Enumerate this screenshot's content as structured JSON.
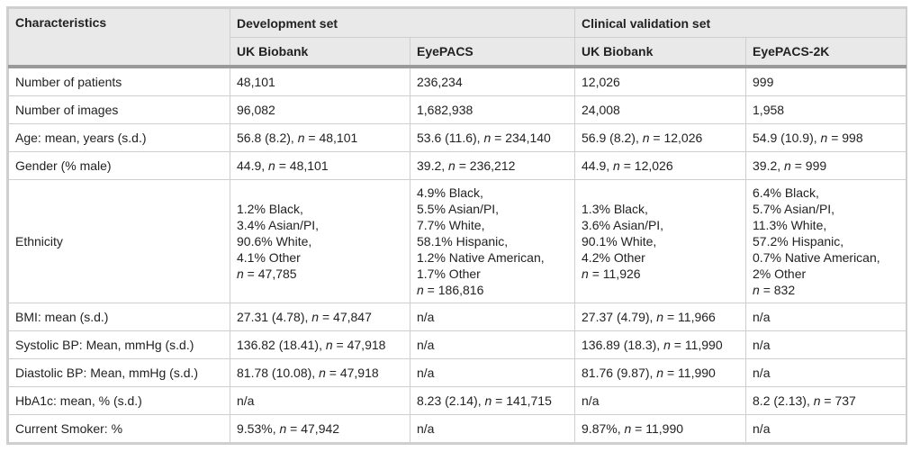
{
  "header": {
    "characteristics": "Characteristics",
    "development_set": "Development set",
    "clinical_validation_set": "Clinical validation set",
    "columns": [
      "UK Biobank",
      "EyePACS",
      "UK Biobank",
      "EyePACS-2K"
    ]
  },
  "rows": [
    {
      "label": "Number of patients",
      "cells": [
        "48,101",
        "236,234",
        "12,026",
        "999"
      ]
    },
    {
      "label": "Number of images",
      "cells": [
        "96,082",
        "1,682,938",
        "24,008",
        "1,958"
      ]
    },
    {
      "label": "Age: mean, years (s.d.)",
      "cells": [
        {
          "pre": "56.8 (8.2), ",
          "n": "n",
          "post": " = 48,101"
        },
        {
          "pre": "53.6 (11.6), ",
          "n": "n",
          "post": " = 234,140"
        },
        {
          "pre": "56.9 (8.2), ",
          "n": "n",
          "post": " = 12,026"
        },
        {
          "pre": "54.9 (10.9), ",
          "n": "n",
          "post": " = 998"
        }
      ]
    },
    {
      "label": "Gender (% male)",
      "cells": [
        {
          "pre": "44.9, ",
          "n": "n",
          "post": " = 48,101"
        },
        {
          "pre": "39.2, ",
          "n": "n",
          "post": " = 236,212"
        },
        {
          "pre": "44.9, ",
          "n": "n",
          "post": " = 12,026"
        },
        {
          "pre": "39.2, ",
          "n": "n",
          "post": " = 999"
        }
      ]
    },
    {
      "label": "Ethnicity",
      "ethnicity": [
        {
          "lines": "1.2% Black,\n3.4% Asian/PI,\n90.6% White,\n4.1% Other",
          "n": "n",
          "post": " = 47,785"
        },
        {
          "lines": "4.9% Black,\n5.5% Asian/PI,\n7.7% White,\n58.1% Hispanic,\n1.2% Native American,\n1.7% Other",
          "n": "n",
          "post": " = 186,816"
        },
        {
          "lines": "1.3% Black,\n3.6% Asian/PI,\n90.1% White,\n4.2% Other",
          "n": "n",
          "post": " = 11,926"
        },
        {
          "lines": "6.4% Black,\n5.7% Asian/PI,\n11.3% White,\n57.2% Hispanic,\n0.7% Native American,\n2% Other",
          "n": "n",
          "post": " = 832"
        }
      ]
    },
    {
      "label": "BMI: mean (s.d.)",
      "cells": [
        {
          "pre": "27.31 (4.78), ",
          "n": "n",
          "post": " = 47,847"
        },
        "n/a",
        {
          "pre": "27.37 (4.79), ",
          "n": "n",
          "post": " = 11,966"
        },
        "n/a"
      ]
    },
    {
      "label": "Systolic BP: Mean, mmHg (s.d.)",
      "cells": [
        {
          "pre": "136.82 (18.41), ",
          "n": "n",
          "post": " = 47,918"
        },
        "n/a",
        {
          "pre": "136.89 (18.3), ",
          "n": "n",
          "post": " = 11,990"
        },
        "n/a"
      ]
    },
    {
      "label": "Diastolic BP: Mean, mmHg (s.d.)",
      "cells": [
        {
          "pre": "81.78 (10.08), ",
          "n": "n",
          "post": " = 47,918"
        },
        "n/a",
        {
          "pre": "81.76 (9.87), ",
          "n": "n",
          "post": " = 11,990"
        },
        "n/a"
      ]
    },
    {
      "label": "HbA1c: mean, % (s.d.)",
      "cells": [
        "n/a",
        {
          "pre": "8.23 (2.14), ",
          "n": "n",
          "post": " = 141,715"
        },
        "n/a",
        {
          "pre": "8.2 (2.13), ",
          "n": "n",
          "post": " = 737"
        }
      ]
    },
    {
      "label": "Current Smoker: %",
      "cells": [
        {
          "pre": "9.53%, ",
          "n": "n",
          "post": " = 47,942"
        },
        "n/a",
        {
          "pre": "9.87%, ",
          "n": "n",
          "post": " = 11,990"
        },
        "n/a"
      ]
    }
  ]
}
